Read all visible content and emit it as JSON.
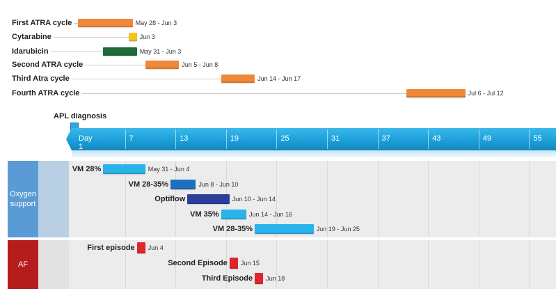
{
  "milestone": {
    "label": "APL diagnosis",
    "color": "#29a8e0"
  },
  "timeline": {
    "ticks": [
      "Day 1",
      "7",
      "13",
      "19",
      "25",
      "31",
      "37",
      "43",
      "49",
      "55"
    ],
    "color": "#1da2dc"
  },
  "top_tasks": [
    {
      "label": "First ATRA cycle",
      "dates": "May 28 - Jun 3",
      "start_day": 1,
      "end_day": 7.5,
      "color": "#f0883a"
    },
    {
      "label": "Cytarabine",
      "dates": "Jun 3",
      "start_day": 7,
      "end_day": 8,
      "color": "#f5c518"
    },
    {
      "label": "Idarubicin",
      "dates": "May 31 - Jun 3",
      "start_day": 4,
      "end_day": 8,
      "color": "#1e6b3a"
    },
    {
      "label": "Second ATRA cycle",
      "dates": "Jun 5 - Jun 8",
      "start_day": 9,
      "end_day": 13,
      "color": "#f0883a"
    },
    {
      "label": "Third Atra cycle",
      "dates": "Jun 14 - Jun 17",
      "start_day": 18,
      "end_day": 22,
      "color": "#f0883a"
    },
    {
      "label": "Fourth ATRA cycle",
      "dates": "Jul 6 - Jul 12",
      "start_day": 40,
      "end_day": 47,
      "color": "#f0883a"
    }
  ],
  "swimlanes": [
    {
      "title": "Oxygen support",
      "title_lines": [
        "Oxygen",
        "support"
      ],
      "header_color": "#5b9bd5",
      "tasks": [
        {
          "label": "VM 28%",
          "dates": "May 31 - Jun 4",
          "start_day": 4,
          "end_day": 9,
          "color": "#29b3ea"
        },
        {
          "label": "VM 28-35%",
          "dates": "Jun 8 - Jun 10",
          "start_day": 12,
          "end_day": 15,
          "color": "#1f6fbf"
        },
        {
          "label": "Optiflow",
          "dates": "Jun 10 - Jun 14",
          "start_day": 14,
          "end_day": 19,
          "color": "#2e3e9c"
        },
        {
          "label": "VM 35%",
          "dates": "Jun 14 - Jun 16",
          "start_day": 18,
          "end_day": 21,
          "color": "#29b3ea"
        },
        {
          "label": "VM 28-35%",
          "dates": "Jun 19 - Jun 25",
          "start_day": 22,
          "end_day": 29,
          "color": "#29b3ea"
        }
      ]
    },
    {
      "title": "AF",
      "title_lines": [
        "AF"
      ],
      "header_color": "#b51c1c",
      "tasks": [
        {
          "label": "First episode",
          "dates": "Jun 4",
          "start_day": 8,
          "end_day": 9,
          "color": "#e0262b"
        },
        {
          "label": "Second Episode",
          "dates": "Jun 15",
          "start_day": 19,
          "end_day": 20,
          "color": "#e0262b"
        },
        {
          "label": "Third Episode",
          "dates": "Jun 18",
          "start_day": 22,
          "end_day": 23,
          "color": "#e0262b"
        }
      ]
    }
  ]
}
